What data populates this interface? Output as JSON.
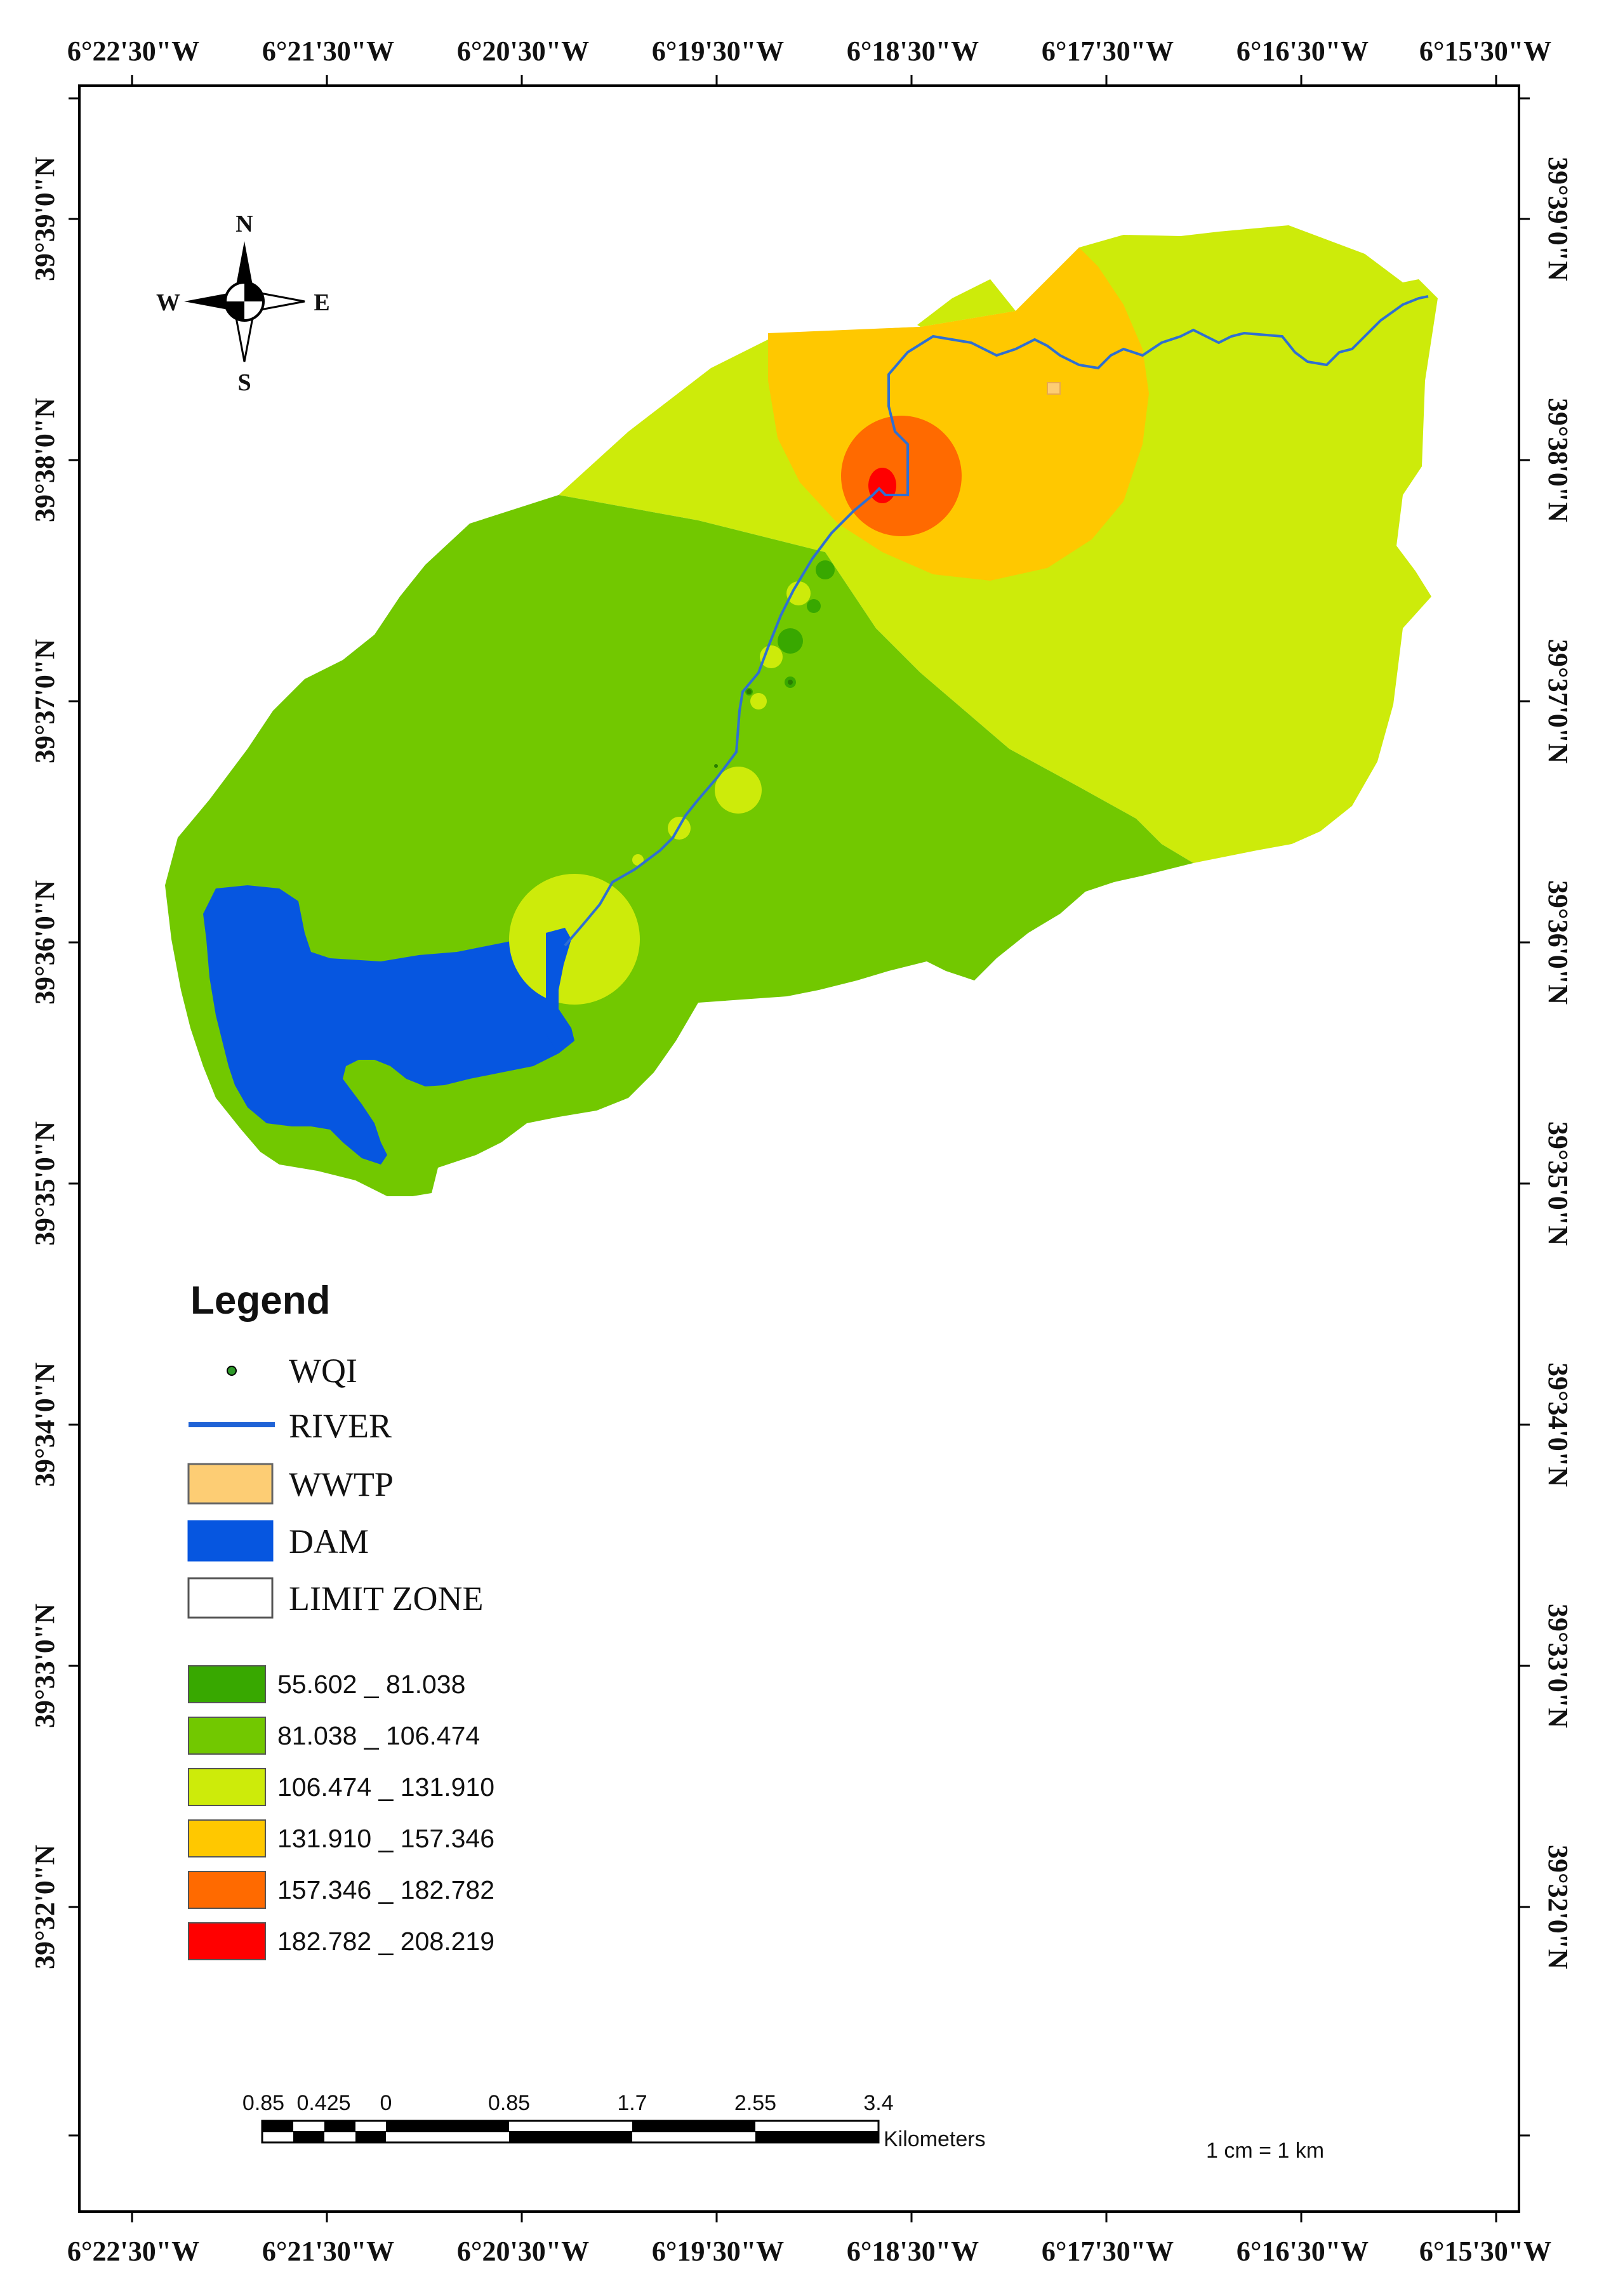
{
  "map": {
    "longitude_labels": [
      "6°22'30\"W",
      "6°21'30\"W",
      "6°20'30\"W",
      "6°19'30\"W",
      "6°18'30\"W",
      "6°17'30\"W",
      "6°16'30\"W",
      "6°15'30\"W"
    ],
    "latitude_labels": [
      "39°39'0\"N",
      "39°38'0\"N",
      "39°37'0\"N",
      "39°36'0\"N",
      "39°35'0\"N",
      "39°34'0\"N",
      "39°33'0\"N",
      "39°32'0\"N"
    ]
  },
  "compass": {
    "n": "N",
    "s": "S",
    "e": "E",
    "w": "W"
  },
  "legend": {
    "title": "Legend",
    "items": [
      {
        "label": "WQI",
        "symbol": "point",
        "color": "#2e9a2a"
      },
      {
        "label": "RIVER",
        "symbol": "line",
        "color": "#1f63d6"
      },
      {
        "label": "WWTP",
        "symbol": "box",
        "color": "#fdcd74"
      },
      {
        "label": "DAM",
        "symbol": "box",
        "color": "#0656e0"
      },
      {
        "label": "LIMIT ZONE",
        "symbol": "box",
        "color": "#ffffff"
      }
    ],
    "classes": [
      {
        "label": "55.602 _ 81.038",
        "color": "#38a800"
      },
      {
        "label": "81.038 _ 106.474",
        "color": "#72c800"
      },
      {
        "label": "106.474 _ 131.910",
        "color": "#cdeb0a"
      },
      {
        "label": "131.910 _ 157.346",
        "color": "#ffc800"
      },
      {
        "label": "157.346 _ 182.782",
        "color": "#ff6a00"
      },
      {
        "label": "182.782 _ 208.219",
        "color": "#ff0000"
      }
    ]
  },
  "scale_bar": {
    "labels": [
      "0.85",
      "0.425",
      "0",
      "0.85",
      "1.7",
      "2.55",
      "3.4"
    ],
    "unit": "Kilometers",
    "ratio": "1 cm = 1 km"
  }
}
